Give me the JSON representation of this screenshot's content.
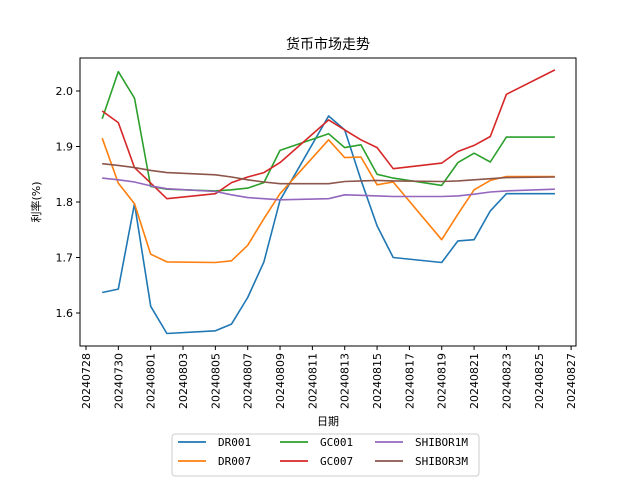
{
  "chart_data": {
    "type": "line",
    "title": "货币市场走势",
    "xlabel": "日期",
    "ylabel": "利率(%)",
    "ylim": [
      1.543,
      2.062
    ],
    "yticks": [
      1.6,
      1.7,
      1.8,
      1.9,
      2.0
    ],
    "ytick_labels": [
      "1.6",
      "1.7",
      "1.8",
      "1.9",
      "2.0"
    ],
    "xtick_labels": [
      "20240728",
      "20240730",
      "20240801",
      "20240803",
      "20240805",
      "20240807",
      "20240809",
      "20240811",
      "20240813",
      "20240815",
      "20240817",
      "20240819",
      "20240821",
      "20240823",
      "20240825",
      "20240827"
    ],
    "grid": false,
    "legend_position": "below, 3 columns",
    "x": [
      "20240729",
      "20240730",
      "20240731",
      "20240801",
      "20240802",
      "20240805",
      "20240806",
      "20240807",
      "20240808",
      "20240809",
      "20240812",
      "20240813",
      "20240814",
      "20240815",
      "20240816",
      "20240819",
      "20240820",
      "20240821",
      "20240822",
      "20240823",
      "20240826"
    ],
    "series": [
      {
        "name": "DR001",
        "color": "#1f77b4",
        "values": [
          1.637,
          1.643,
          1.797,
          1.612,
          1.563,
          1.568,
          1.58,
          1.628,
          1.692,
          1.803,
          1.955,
          1.93,
          1.84,
          1.757,
          1.7,
          1.691,
          1.73,
          1.732,
          1.784,
          1.815,
          1.815
        ]
      },
      {
        "name": "DR007",
        "color": "#ff7f0e",
        "values": [
          1.915,
          1.834,
          1.797,
          1.706,
          1.692,
          1.691,
          1.694,
          1.722,
          1.77,
          1.815,
          1.912,
          1.88,
          1.881,
          1.831,
          1.836,
          1.732,
          1.778,
          1.822,
          1.839,
          1.846,
          1.846
        ]
      },
      {
        "name": "GC001",
        "color": "#2ca02c",
        "values": [
          1.95,
          2.035,
          1.987,
          1.828,
          1.823,
          1.82,
          1.822,
          1.825,
          1.835,
          1.893,
          1.923,
          1.898,
          1.903,
          1.85,
          1.843,
          1.83,
          1.871,
          1.888,
          1.872,
          1.917,
          1.917
        ]
      },
      {
        "name": "GC007",
        "color": "#d62728",
        "values": [
          1.964,
          1.943,
          1.862,
          1.834,
          1.806,
          1.815,
          1.835,
          1.845,
          1.853,
          1.871,
          1.948,
          1.93,
          1.912,
          1.898,
          1.86,
          1.87,
          1.891,
          1.902,
          1.918,
          1.994,
          2.038
        ]
      },
      {
        "name": "SHIBOR1M",
        "color": "#9467bd",
        "values": [
          1.843,
          1.84,
          1.836,
          1.829,
          1.824,
          1.819,
          1.813,
          1.808,
          1.806,
          1.804,
          1.806,
          1.813,
          1.812,
          1.811,
          1.81,
          1.81,
          1.811,
          1.814,
          1.818,
          1.82,
          1.823
        ]
      },
      {
        "name": "SHIBOR3M",
        "color": "#8c564b",
        "values": [
          1.869,
          1.866,
          1.862,
          1.857,
          1.853,
          1.849,
          1.845,
          1.84,
          1.836,
          1.833,
          1.833,
          1.837,
          1.838,
          1.839,
          1.838,
          1.837,
          1.838,
          1.84,
          1.842,
          1.844,
          1.845
        ]
      }
    ]
  },
  "legend_items": [
    "DR001",
    "DR007",
    "GC001",
    "GC007",
    "SHIBOR1M",
    "SHIBOR3M"
  ]
}
